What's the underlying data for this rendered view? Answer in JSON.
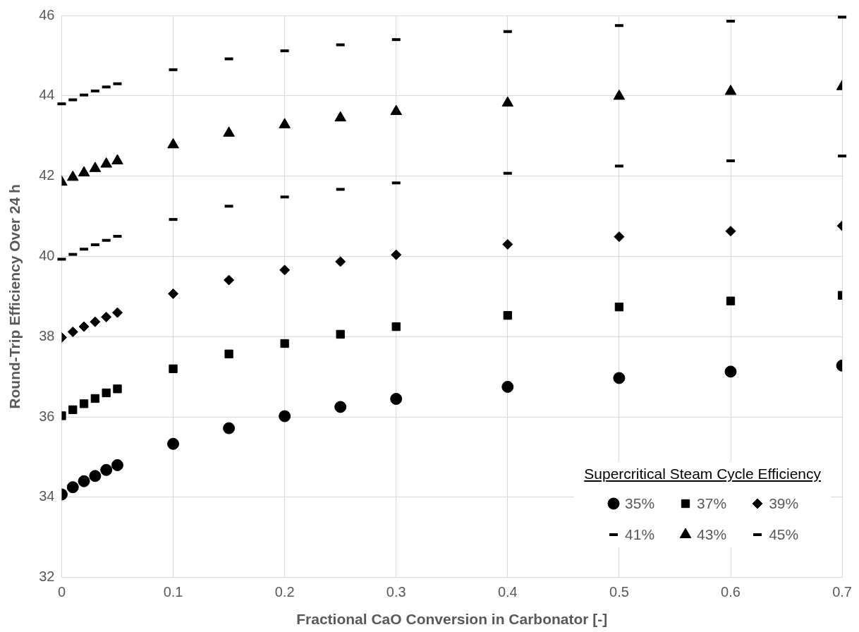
{
  "chart_data": {
    "type": "scatter",
    "xlabel": "Fractional CaO Conversion in Carbonator [-]",
    "ylabel": "Round-Trip Efficiency Over 24 h",
    "legend_title": "Supercritical Steam Cycle Efficiency",
    "x": [
      0,
      0.01,
      0.02,
      0.03,
      0.04,
      0.05,
      0.1,
      0.15,
      0.2,
      0.25,
      0.3,
      0.4,
      0.5,
      0.6,
      0.7
    ],
    "xlim": [
      0,
      0.7
    ],
    "xticks": [
      {
        "value": 0,
        "label": "0"
      },
      0.1,
      0.2,
      0.3,
      0.4,
      0.5,
      0.6,
      0.7
    ],
    "ylim": [
      32,
      46
    ],
    "yticks": [
      32,
      34,
      36,
      38,
      40,
      42,
      44,
      46
    ],
    "grid": true,
    "legend": "bottom right",
    "series": [
      {
        "name": "35%",
        "color": "#000000",
        "marker": "circle",
        "values": [
          34.07,
          34.25,
          34.4,
          34.53,
          34.68,
          34.8,
          35.33,
          35.72,
          36.02,
          36.25,
          36.45,
          36.75,
          36.97,
          37.13,
          37.28
        ]
      },
      {
        "name": "37%",
        "color": "#000000",
        "marker": "square",
        "values": [
          36.03,
          36.18,
          36.33,
          36.46,
          36.6,
          36.7,
          37.2,
          37.57,
          37.83,
          38.06,
          38.25,
          38.53,
          38.74,
          38.89,
          39.03
        ]
      },
      {
        "name": "39%",
        "color": "#000000",
        "marker": "diamond",
        "values": [
          37.98,
          38.12,
          38.25,
          38.37,
          38.49,
          38.6,
          39.07,
          39.41,
          39.66,
          39.87,
          40.04,
          40.3,
          40.49,
          40.63,
          40.76
        ]
      },
      {
        "name": "41%",
        "color": "#000000",
        "values": [
          39.93,
          40.05,
          40.18,
          40.29,
          40.4,
          40.5,
          40.92,
          41.25,
          41.48,
          41.67,
          41.83,
          42.07,
          42.25,
          42.38,
          42.5
        ]
      },
      {
        "name": "43%",
        "color": "#000000",
        "marker": "triangle",
        "values": [
          41.85,
          41.97,
          42.08,
          42.19,
          42.3,
          42.38,
          42.78,
          43.07,
          43.28,
          43.45,
          43.61,
          43.82,
          43.99,
          44.11,
          44.23
        ]
      },
      {
        "name": "45%",
        "color": "#000000",
        "values": [
          43.8,
          43.9,
          44.02,
          44.12,
          44.22,
          44.3,
          44.65,
          44.92,
          45.12,
          45.27,
          45.4,
          45.6,
          45.75,
          45.86,
          45.96
        ]
      }
    ]
  }
}
